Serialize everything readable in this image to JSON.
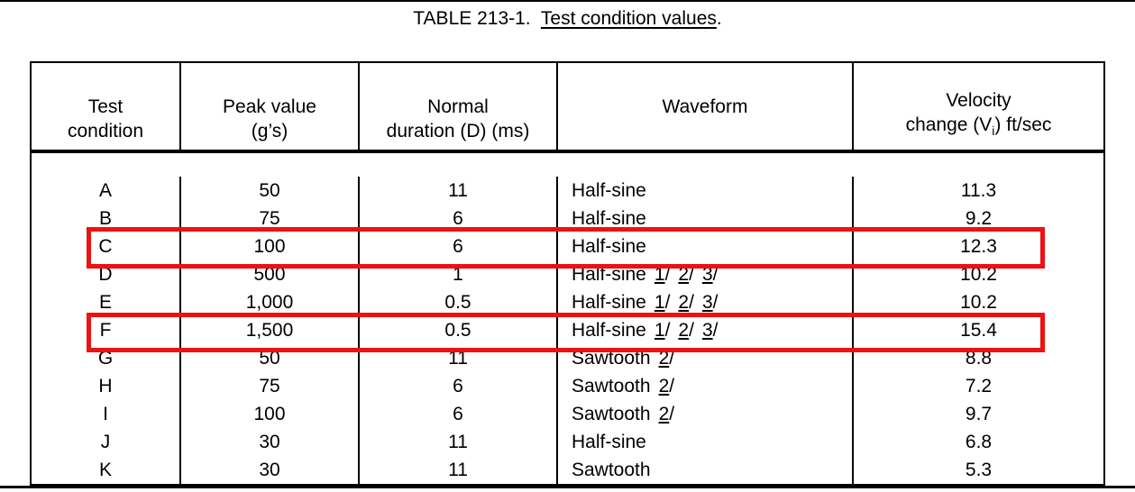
{
  "title": {
    "prefix": "TABLE 213-1.  ",
    "underlined": "Test condition values",
    "suffix": "."
  },
  "table": {
    "headers": [
      {
        "line1": "Test",
        "line2": "condition"
      },
      {
        "line1": "Peak value",
        "line2": "(g’s)"
      },
      {
        "line1": "Normal",
        "line2": "duration (D) (ms)"
      },
      {
        "line1": "Waveform",
        "line2": ""
      },
      {
        "line1": "Velocity",
        "line2_pre": "change (V",
        "line2_sub": "i",
        "line2_post": ") ft/sec"
      }
    ],
    "rows": [
      {
        "condition": "A",
        "peak": "50",
        "duration": "11",
        "waveform": "Half-sine",
        "footnotes": [],
        "velocity": "11.3",
        "highlighted": false
      },
      {
        "condition": "B",
        "peak": "75",
        "duration": "6",
        "waveform": "Half-sine",
        "footnotes": [],
        "velocity": "9.2",
        "highlighted": false
      },
      {
        "condition": "C",
        "peak": "100",
        "duration": "6",
        "waveform": "Half-sine",
        "footnotes": [],
        "velocity": "12.3",
        "highlighted": true
      },
      {
        "condition": "D",
        "peak": "500",
        "duration": "1",
        "waveform": "Half-sine",
        "footnotes": [
          "1",
          "2",
          "3"
        ],
        "velocity": "10.2",
        "highlighted": false
      },
      {
        "condition": "E",
        "peak": "1,000",
        "duration": "0.5",
        "waveform": "Half-sine",
        "footnotes": [
          "1",
          "2",
          "3"
        ],
        "velocity": "10.2",
        "highlighted": false
      },
      {
        "condition": "F",
        "peak": "1,500",
        "duration": "0.5",
        "waveform": "Half-sine",
        "footnotes": [
          "1",
          "2",
          "3"
        ],
        "velocity": "15.4",
        "highlighted": true
      },
      {
        "condition": "G",
        "peak": "50",
        "duration": "11",
        "waveform": "Sawtooth",
        "footnotes": [
          "2"
        ],
        "velocity": "8.8",
        "highlighted": false
      },
      {
        "condition": "H",
        "peak": "75",
        "duration": "6",
        "waveform": "Sawtooth",
        "footnotes": [
          "2"
        ],
        "velocity": "7.2",
        "highlighted": false
      },
      {
        "condition": "I",
        "peak": "100",
        "duration": "6",
        "waveform": "Sawtooth",
        "footnotes": [
          "2"
        ],
        "velocity": "9.7",
        "highlighted": false
      },
      {
        "condition": "J",
        "peak": "30",
        "duration": "11",
        "waveform": "Half-sine",
        "footnotes": [],
        "velocity": "6.8",
        "highlighted": false
      },
      {
        "condition": "K",
        "peak": "30",
        "duration": "11",
        "waveform": "Sawtooth",
        "footnotes": [],
        "velocity": "5.3",
        "highlighted": false
      }
    ],
    "highlighted_rows": [
      "C",
      "F"
    ],
    "highlight_color": "#ee1111"
  }
}
